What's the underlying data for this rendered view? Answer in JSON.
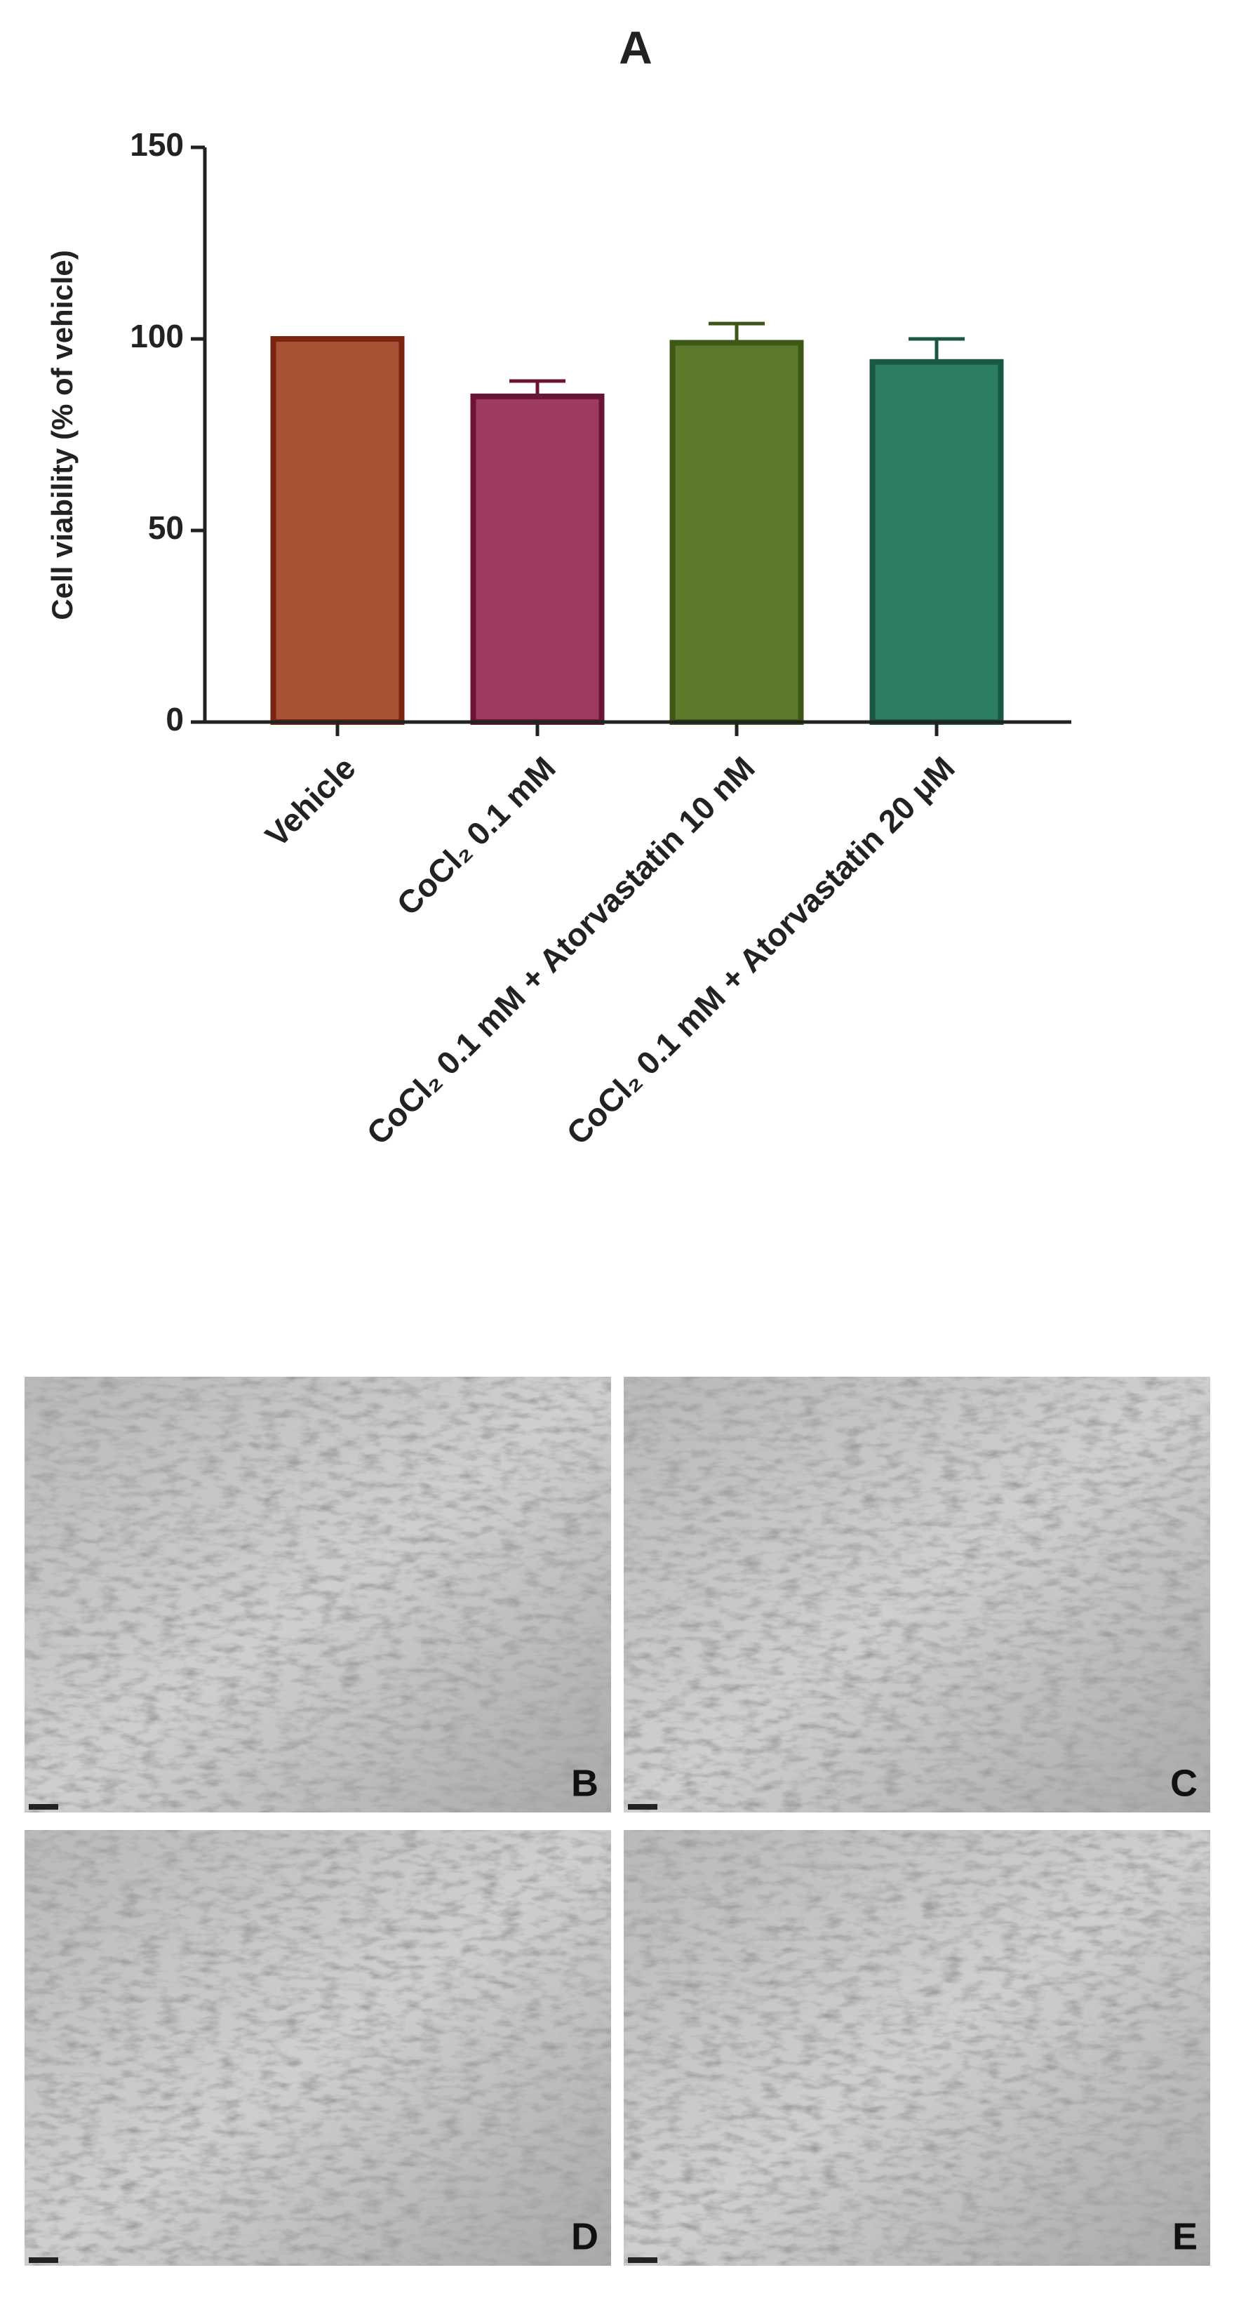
{
  "chart_data": {
    "type": "bar",
    "title": "A",
    "y_label": "Cell viability (% of vehicle)",
    "categories": [
      "Vehicle",
      "CoCl₂ 0.1 mM",
      "CoCl₂ 0.1 mM + Atorvastatin 10 nM",
      "CoCl₂ 0.1 mM + Atorvastatin 20 μM"
    ],
    "values": [
      100,
      85,
      99,
      94
    ],
    "errors": [
      null,
      4,
      5,
      6
    ],
    "colors": [
      "#a65336",
      "#9c3a60",
      "#5b7a2b",
      "#2b7d63"
    ],
    "edgecolors": [
      "#7a2510",
      "#6a1535",
      "#3d5816",
      "#1a5745"
    ],
    "ylim": [
      0,
      150
    ],
    "yticks": [
      0,
      50,
      100,
      150
    ]
  },
  "panels": [
    "B",
    "C",
    "D",
    "E"
  ]
}
